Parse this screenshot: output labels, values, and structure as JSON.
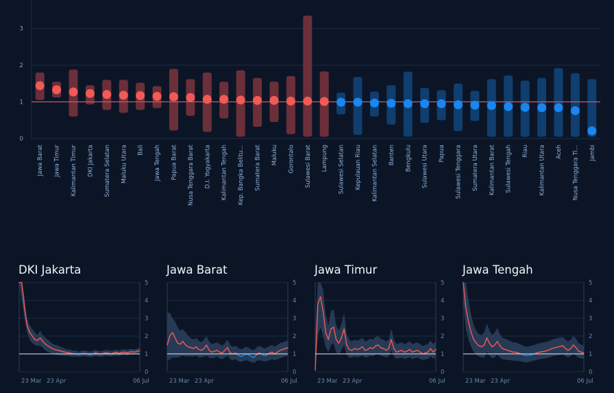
{
  "chart_data": [
    {
      "type": "interval-dot",
      "title": "",
      "ylabel": "",
      "ylim": [
        0,
        3.6
      ],
      "yticks": [
        "0",
        "1",
        "2",
        "3"
      ],
      "reference_line": 1,
      "colors": {
        "above": "#f25a55",
        "below": "#1a86f2",
        "band_above": "#6b2f3a",
        "band_below": "#103e6e",
        "ref": "#c65a6a"
      },
      "points": [
        {
          "label": "Jawa Barat",
          "value": 1.44,
          "low": 1.05,
          "high": 1.8
        },
        {
          "label": "Jawa Timur",
          "value": 1.33,
          "low": 1.12,
          "high": 1.55
        },
        {
          "label": "Kalimantan Timur",
          "value": 1.27,
          "low": 0.6,
          "high": 1.88
        },
        {
          "label": "DKI Jakarta",
          "value": 1.23,
          "low": 0.93,
          "high": 1.45
        },
        {
          "label": "Sumatera Selatan",
          "value": 1.2,
          "low": 0.78,
          "high": 1.6
        },
        {
          "label": "Maluku Utara",
          "value": 1.18,
          "low": 0.7,
          "high": 1.6
        },
        {
          "label": "Bali",
          "value": 1.17,
          "low": 0.78,
          "high": 1.52
        },
        {
          "label": "Jawa Tengah",
          "value": 1.15,
          "low": 0.83,
          "high": 1.43
        },
        {
          "label": "Papua Barat",
          "value": 1.14,
          "low": 0.22,
          "high": 1.9
        },
        {
          "label": "Nusa Tenggara Barat",
          "value": 1.12,
          "low": 0.62,
          "high": 1.62
        },
        {
          "label": "D.I. Yogyakarta",
          "value": 1.07,
          "low": 0.18,
          "high": 1.8
        },
        {
          "label": "Kalimantan Tengah",
          "value": 1.07,
          "low": 0.55,
          "high": 1.55
        },
        {
          "label": "Kep. Bangka Belitu...",
          "value": 1.05,
          "low": 0.05,
          "high": 1.86
        },
        {
          "label": "Sumatera Barat",
          "value": 1.04,
          "low": 0.32,
          "high": 1.65
        },
        {
          "label": "Maluku",
          "value": 1.04,
          "low": 0.45,
          "high": 1.55
        },
        {
          "label": "Gorontalo",
          "value": 1.02,
          "low": 0.12,
          "high": 1.7
        },
        {
          "label": "Sulawesi Barat",
          "value": 1.02,
          "low": 0.05,
          "high": 3.35
        },
        {
          "label": "Lampung",
          "value": 1.01,
          "low": 0.05,
          "high": 1.83
        },
        {
          "label": "Sulawesi Selatan",
          "value": 0.99,
          "low": 0.66,
          "high": 1.25
        },
        {
          "label": "Kepulauan Riau",
          "value": 0.99,
          "low": 0.1,
          "high": 1.68
        },
        {
          "label": "Kalimantan Selatan",
          "value": 0.97,
          "low": 0.6,
          "high": 1.28
        },
        {
          "label": "Banten",
          "value": 0.96,
          "low": 0.38,
          "high": 1.45
        },
        {
          "label": "Bengkulu",
          "value": 0.95,
          "low": 0.05,
          "high": 1.82
        },
        {
          "label": "Sulawesi Utara",
          "value": 0.95,
          "low": 0.43,
          "high": 1.38
        },
        {
          "label": "Papua",
          "value": 0.95,
          "low": 0.5,
          "high": 1.32
        },
        {
          "label": "Sulawesi Tenggara",
          "value": 0.92,
          "low": 0.2,
          "high": 1.5
        },
        {
          "label": "Sumatera Utara",
          "value": 0.91,
          "low": 0.48,
          "high": 1.3
        },
        {
          "label": "Kalimantan Barat",
          "value": 0.9,
          "low": 0.05,
          "high": 1.62
        },
        {
          "label": "Sulawesi Tengah",
          "value": 0.87,
          "low": 0.05,
          "high": 1.72
        },
        {
          "label": "Riau",
          "value": 0.85,
          "low": 0.05,
          "high": 1.58
        },
        {
          "label": "Kalimantan Utara",
          "value": 0.84,
          "low": 0.05,
          "high": 1.65
        },
        {
          "label": "Aceh",
          "value": 0.84,
          "low": 0.05,
          "high": 1.92
        },
        {
          "label": "Nusa Tenggara Ti...",
          "value": 0.76,
          "low": 0.05,
          "high": 1.78
        },
        {
          "label": "Jambi",
          "value": 0.21,
          "low": 0.05,
          "high": 1.62
        }
      ]
    },
    {
      "type": "line",
      "title": "DKI Jakarta",
      "ylim": [
        0,
        5
      ],
      "yticks": [
        "0",
        "1",
        "2",
        "3",
        "4",
        "5"
      ],
      "xticks": [
        "23 Mar",
        "23 Apr",
        "06 Jul"
      ],
      "reference_line": 1,
      "values": [
        5.2,
        5.0,
        3.6,
        2.6,
        2.2,
        2.0,
        1.8,
        1.75,
        1.9,
        1.7,
        1.55,
        1.45,
        1.35,
        1.28,
        1.22,
        1.2,
        1.15,
        1.12,
        1.08,
        1.06,
        1.02,
        1.0,
        1.0,
        0.97,
        1.02,
        1.02,
        1.0,
        0.96,
        1.0,
        1.05,
        1.02,
        0.98,
        1.02,
        1.06,
        1.04,
        1.0,
        1.05,
        1.08,
        1.03,
        1.08,
        1.1,
        1.06,
        1.1,
        1.12,
        1.1,
        1.15,
        1.18
      ],
      "lower": [
        5.0,
        4.0,
        3.0,
        2.2,
        1.8,
        1.6,
        1.5,
        1.45,
        1.45,
        1.35,
        1.2,
        1.1,
        1.05,
        1.0,
        0.95,
        0.93,
        0.92,
        0.9,
        0.9,
        0.88,
        0.85,
        0.85,
        0.85,
        0.83,
        0.86,
        0.87,
        0.85,
        0.82,
        0.85,
        0.88,
        0.86,
        0.84,
        0.86,
        0.9,
        0.88,
        0.86,
        0.89,
        0.92,
        0.88,
        0.92,
        0.95,
        0.92,
        0.95,
        0.97,
        0.96,
        1.0,
        1.02
      ],
      "upper": [
        5.2,
        5.2,
        4.2,
        3.0,
        2.6,
        2.4,
        2.2,
        2.05,
        2.3,
        2.05,
        1.9,
        1.8,
        1.65,
        1.55,
        1.5,
        1.45,
        1.38,
        1.32,
        1.26,
        1.24,
        1.2,
        1.18,
        1.17,
        1.12,
        1.18,
        1.18,
        1.16,
        1.12,
        1.16,
        1.22,
        1.18,
        1.14,
        1.18,
        1.22,
        1.2,
        1.16,
        1.2,
        1.24,
        1.18,
        1.24,
        1.26,
        1.22,
        1.26,
        1.28,
        1.25,
        1.3,
        1.35
      ]
    },
    {
      "type": "line",
      "title": "Jawa Barat",
      "ylim": [
        0,
        5
      ],
      "yticks": [
        "0",
        "1",
        "2",
        "3",
        "4",
        "5"
      ],
      "xticks": [
        "23 Mar",
        "23 Apr",
        "06 Jul"
      ],
      "reference_line": 1,
      "values": [
        1.5,
        2.0,
        2.2,
        1.9,
        1.6,
        1.55,
        1.7,
        1.5,
        1.4,
        1.35,
        1.3,
        1.4,
        1.25,
        1.2,
        1.3,
        1.5,
        1.2,
        1.1,
        1.15,
        1.2,
        1.1,
        1.05,
        1.2,
        1.35,
        1.05,
        1.0,
        1.05,
        0.95,
        0.85,
        0.9,
        1.0,
        0.95,
        0.85,
        0.8,
        0.95,
        1.05,
        1.0,
        0.9,
        0.95,
        1.05,
        1.1,
        1.0,
        1.1,
        1.2,
        1.25,
        1.3,
        1.35
      ],
      "lower": [
        0.6,
        0.7,
        0.8,
        0.8,
        0.8,
        0.85,
        0.9,
        0.85,
        0.85,
        0.85,
        0.85,
        0.9,
        0.8,
        0.8,
        0.85,
        0.9,
        0.8,
        0.75,
        0.8,
        0.85,
        0.75,
        0.7,
        0.8,
        0.9,
        0.7,
        0.65,
        0.7,
        0.6,
        0.55,
        0.6,
        0.65,
        0.6,
        0.55,
        0.5,
        0.6,
        0.65,
        0.62,
        0.58,
        0.6,
        0.65,
        0.7,
        0.65,
        0.7,
        0.75,
        0.8,
        0.85,
        0.9
      ],
      "upper": [
        3.3,
        3.3,
        3.0,
        2.8,
        2.5,
        2.3,
        2.4,
        2.2,
        2.0,
        1.9,
        1.8,
        1.9,
        1.75,
        1.65,
        1.8,
        2.0,
        1.7,
        1.55,
        1.6,
        1.65,
        1.55,
        1.45,
        1.6,
        1.8,
        1.5,
        1.4,
        1.45,
        1.35,
        1.25,
        1.3,
        1.4,
        1.35,
        1.25,
        1.2,
        1.35,
        1.45,
        1.4,
        1.3,
        1.35,
        1.45,
        1.5,
        1.4,
        1.5,
        1.6,
        1.65,
        1.7,
        1.75
      ]
    },
    {
      "type": "line",
      "title": "Jawa Timur",
      "ylim": [
        0,
        5
      ],
      "yticks": [
        "0",
        "1",
        "2",
        "3",
        "4",
        "5"
      ],
      "xticks": [
        "23 Mar",
        "23 Apr",
        "06 Jul"
      ],
      "reference_line": 1,
      "values": [
        0.1,
        3.8,
        4.2,
        3.4,
        2.2,
        1.8,
        2.4,
        2.5,
        1.8,
        1.6,
        1.9,
        2.4,
        1.5,
        1.25,
        1.2,
        1.3,
        1.25,
        1.3,
        1.4,
        1.2,
        1.25,
        1.35,
        1.3,
        1.45,
        1.5,
        1.35,
        1.3,
        1.2,
        1.3,
        1.8,
        1.3,
        1.1,
        1.15,
        1.2,
        1.1,
        1.15,
        1.25,
        1.1,
        1.15,
        1.2,
        1.1,
        1.0,
        1.05,
        1.1,
        1.3,
        1.1,
        1.25
      ],
      "lower": [
        0.0,
        2.0,
        2.5,
        2.0,
        1.4,
        1.1,
        1.5,
        1.6,
        1.1,
        1.0,
        1.2,
        1.5,
        0.95,
        0.8,
        0.8,
        0.85,
        0.82,
        0.85,
        0.9,
        0.8,
        0.82,
        0.9,
        0.86,
        0.95,
        1.0,
        0.9,
        0.86,
        0.8,
        0.86,
        1.2,
        0.86,
        0.72,
        0.76,
        0.8,
        0.72,
        0.76,
        0.82,
        0.72,
        0.76,
        0.8,
        0.72,
        0.66,
        0.7,
        0.72,
        0.86,
        0.72,
        0.82
      ],
      "upper": [
        2.0,
        5.2,
        5.2,
        4.6,
        3.2,
        2.6,
        3.4,
        3.5,
        2.6,
        2.3,
        2.7,
        3.3,
        2.1,
        1.8,
        1.7,
        1.8,
        1.75,
        1.8,
        1.9,
        1.7,
        1.75,
        1.85,
        1.8,
        1.95,
        2.0,
        1.85,
        1.8,
        1.7,
        1.8,
        2.4,
        1.8,
        1.55,
        1.6,
        1.65,
        1.55,
        1.6,
        1.7,
        1.55,
        1.6,
        1.65,
        1.55,
        1.45,
        1.5,
        1.55,
        1.75,
        1.55,
        1.7
      ]
    },
    {
      "type": "line",
      "title": "Jawa Tengah",
      "ylim": [
        0,
        5
      ],
      "yticks": [
        "0",
        "1",
        "2",
        "3",
        "4",
        "5"
      ],
      "xticks": [
        "23 Mar",
        "23 Apr",
        "06 Jul"
      ],
      "reference_line": 1,
      "values": [
        5.2,
        3.6,
        2.8,
        2.2,
        1.8,
        1.6,
        1.45,
        1.4,
        1.5,
        1.9,
        1.6,
        1.4,
        1.5,
        1.7,
        1.45,
        1.3,
        1.25,
        1.2,
        1.15,
        1.1,
        1.1,
        1.05,
        1.0,
        0.95,
        0.9,
        0.92,
        0.95,
        1.0,
        1.05,
        1.1,
        1.12,
        1.15,
        1.18,
        1.25,
        1.3,
        1.35,
        1.38,
        1.42,
        1.45,
        1.3,
        1.2,
        1.3,
        1.5,
        1.35,
        1.15,
        1.1,
        1.05
      ],
      "lower": [
        4.0,
        2.4,
        1.8,
        1.4,
        1.1,
        0.95,
        0.85,
        0.8,
        0.8,
        1.1,
        0.9,
        0.75,
        0.8,
        0.95,
        0.8,
        0.7,
        0.68,
        0.66,
        0.65,
        0.62,
        0.62,
        0.6,
        0.58,
        0.55,
        0.52,
        0.55,
        0.58,
        0.62,
        0.66,
        0.7,
        0.72,
        0.75,
        0.78,
        0.82,
        0.86,
        0.9,
        0.92,
        0.95,
        0.98,
        0.88,
        0.8,
        0.88,
        1.0,
        0.9,
        0.78,
        0.75,
        0.72
      ],
      "upper": [
        5.2,
        5.0,
        4.0,
        3.2,
        2.6,
        2.3,
        2.1,
        2.05,
        2.2,
        2.7,
        2.3,
        2.05,
        2.2,
        2.45,
        2.1,
        1.9,
        1.85,
        1.8,
        1.72,
        1.65,
        1.65,
        1.58,
        1.52,
        1.45,
        1.4,
        1.42,
        1.45,
        1.5,
        1.55,
        1.6,
        1.62,
        1.65,
        1.68,
        1.75,
        1.8,
        1.85,
        1.88,
        1.92,
        1.95,
        1.8,
        1.7,
        1.8,
        2.0,
        1.85,
        1.6,
        1.52,
        1.45
      ]
    }
  ]
}
